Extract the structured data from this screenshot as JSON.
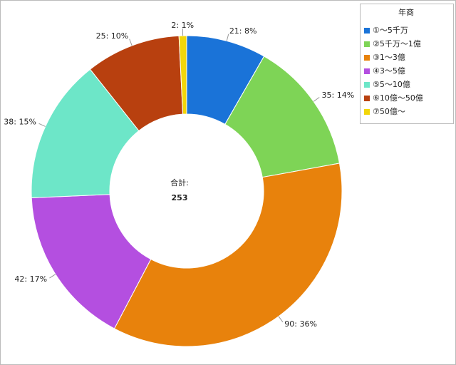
{
  "chart_data": {
    "type": "donut",
    "legend_title": "年商",
    "categories": [
      "①～5千万",
      "②5千万～1億",
      "③1～3億",
      "④3～5億",
      "⑤5～10億",
      "⑥10億～50億",
      "⑦50億～"
    ],
    "values": [
      21,
      35,
      90,
      42,
      38,
      25,
      2
    ],
    "value_labels": [
      "21: 8%",
      "35: 14%",
      "90: 36%",
      "42: 17%",
      "38: 15%",
      "25: 10%",
      "2: 1%"
    ],
    "colors": [
      "#1a73d8",
      "#7ed456",
      "#e8820c",
      "#b44fe0",
      "#6de6c8",
      "#b8400f",
      "#f2d60a"
    ],
    "total_label": "合計:",
    "total": 253,
    "legend": "top-right"
  }
}
